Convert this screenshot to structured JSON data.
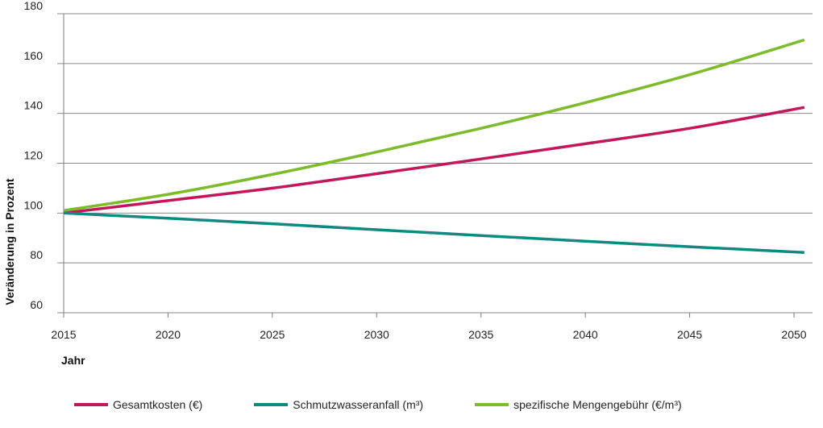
{
  "chart_data": {
    "type": "line",
    "xlabel": "Jahr",
    "ylabel": "Veränderung in Prozent",
    "x_ticks": [
      2015,
      2020,
      2025,
      2030,
      2035,
      2040,
      2045,
      2050
    ],
    "y_ticks": [
      60,
      80,
      100,
      120,
      140,
      160,
      180
    ],
    "xlim": [
      2015,
      2050.5
    ],
    "ylim": [
      60,
      180
    ],
    "grid": "horizontal",
    "legend_position": "bottom",
    "series": [
      {
        "name": "Gesamtkosten (€)",
        "color": "#c2185b",
        "x": [
          2015,
          2020,
          2025,
          2030,
          2035,
          2040,
          2045,
          2050.5
        ],
        "y": [
          100,
          105,
          110,
          115.8,
          121.7,
          127.8,
          134,
          142.4
        ]
      },
      {
        "name": "Schmutzwasseranfall (m³)",
        "color": "#0f8a80",
        "x": [
          2015,
          2020,
          2025,
          2030,
          2035,
          2040,
          2045,
          2050.5
        ],
        "y": [
          100,
          97.9,
          95.7,
          93.3,
          91,
          88.7,
          86.5,
          84.2
        ]
      },
      {
        "name": "spezifische Mengengebühr (€/m³)",
        "color": "#7cbb2a",
        "x": [
          2015,
          2020,
          2025,
          2030,
          2035,
          2040,
          2045,
          2050.5
        ],
        "y": [
          101,
          107.5,
          115.5,
          124.5,
          134,
          144.3,
          155.5,
          169.5
        ]
      }
    ]
  }
}
